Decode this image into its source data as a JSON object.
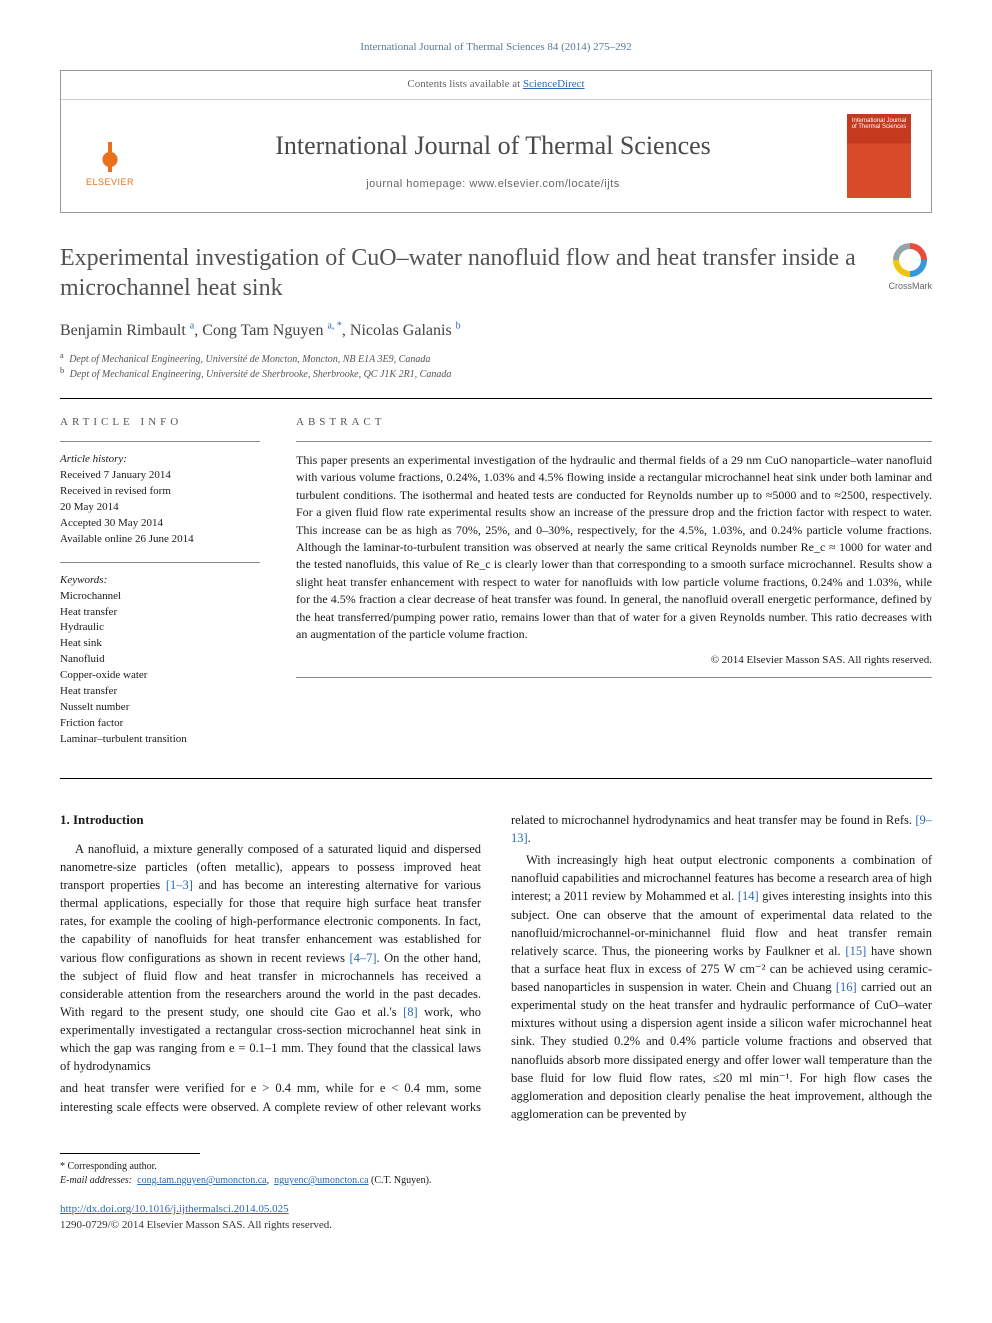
{
  "citation": "International Journal of Thermal Sciences 84 (2014) 275–292",
  "header": {
    "contents_prefix": "Contents lists available at ",
    "contents_link": "ScienceDirect",
    "journal_name": "International Journal of Thermal Sciences",
    "homepage_prefix": "journal homepage: ",
    "homepage_url": "www.elsevier.com/locate/ijts",
    "publisher": "ELSEVIER",
    "cover_text": "International Journal of Thermal Sciences"
  },
  "crossmark_label": "CrossMark",
  "title": "Experimental investigation of CuO–water nanofluid flow and heat transfer inside a microchannel heat sink",
  "authors_html": "Benjamin Rimbault <sup>a</sup>, Cong Tam Nguyen <sup>a, *</sup>, Nicolas Galanis <sup>b</sup>",
  "affiliations": [
    {
      "sup": "a",
      "text": "Dept of Mechanical Engineering, Université de Moncton, Moncton, NB E1A 3E9, Canada"
    },
    {
      "sup": "b",
      "text": "Dept of Mechanical Engineering, Université de Sherbrooke, Sherbrooke, QC J1K 2R1, Canada"
    }
  ],
  "article_info_head": "ARTICLE INFO",
  "abstract_head": "ABSTRACT",
  "history_label": "Article history:",
  "history": [
    "Received 7 January 2014",
    "Received in revised form",
    "20 May 2014",
    "Accepted 30 May 2014",
    "Available online 26 June 2014"
  ],
  "keywords_label": "Keywords:",
  "keywords": [
    "Microchannel",
    "Heat transfer",
    "Hydraulic",
    "Heat sink",
    "Nanofluid",
    "Copper-oxide water",
    "Heat transfer",
    "Nusselt number",
    "Friction factor",
    "Laminar–turbulent transition"
  ],
  "abstract": "This paper presents an experimental investigation of the hydraulic and thermal fields of a 29 nm CuO nanoparticle–water nanofluid with various volume fractions, 0.24%, 1.03% and 4.5% flowing inside a rectangular microchannel heat sink under both laminar and turbulent conditions. The isothermal and heated tests are conducted for Reynolds number up to ≈5000 and to ≈2500, respectively. For a given fluid flow rate experimental results show an increase of the pressure drop and the friction factor with respect to water. This increase can be as high as 70%, 25%, and 0–30%, respectively, for the 4.5%, 1.03%, and 0.24% particle volume fractions. Although the laminar-to-turbulent transition was observed at nearly the same critical Reynolds number Re_c ≈ 1000 for water and the tested nanofluids, this value of Re_c is clearly lower than that corresponding to a smooth surface microchannel. Results show a slight heat transfer enhancement with respect to water for nanofluids with low particle volume fractions, 0.24% and 1.03%, while for the 4.5% fraction a clear decrease of heat transfer was found. In general, the nanofluid overall energetic performance, defined by the heat transferred/pumping power ratio, remains lower than that of water for a given Reynolds number. This ratio decreases with an augmentation of the particle volume fraction.",
  "copyright": "© 2014 Elsevier Masson SAS. All rights reserved.",
  "intro_head": "1. Introduction",
  "intro_p1_a": "A nanofluid, a mixture generally composed of a saturated liquid and dispersed nanometre-size particles (often metallic), appears to possess improved heat transport properties ",
  "ref_1_3": "[1–3]",
  "intro_p1_b": " and has become an interesting alternative for various thermal applications, especially for those that require high surface heat transfer rates, for example the cooling of high-performance electronic components. In fact, the capability of nanofluids for heat transfer enhancement was established for various flow configurations as shown in recent reviews ",
  "ref_4_7": "[4–7]",
  "intro_p1_c": ". On the other hand, the subject of fluid flow and heat transfer in microchannels has received a considerable attention from the researchers around the world in the past decades. With regard to the present study, one should cite Gao et al.'s ",
  "ref_8": "[8]",
  "intro_p1_d": " work, who experimentally investigated a rectangular cross-section microchannel heat sink in which the gap was ranging from e = 0.1–1 mm. They found that the classical laws of hydrodynamics",
  "intro_p2_a": "and heat transfer were verified for e > 0.4 mm, while for e < 0.4 mm, some interesting scale effects were observed. A complete review of other relevant works related to microchannel hydrodynamics and heat transfer may be found in Refs. ",
  "ref_9_13": "[9–13]",
  "intro_p2_b": ".",
  "intro_p3_a": "With increasingly high heat output electronic components a combination of nanofluid capabilities and microchannel features has become a research area of high interest; a 2011 review by Mohammed et al. ",
  "ref_14": "[14]",
  "intro_p3_b": " gives interesting insights into this subject. One can observe that the amount of experimental data related to the nanofluid/microchannel-or-minichannel fluid flow and heat transfer remain relatively scarce. Thus, the pioneering works by Faulkner et al. ",
  "ref_15": "[15]",
  "intro_p3_c": " have shown that a surface heat flux in excess of 275 W cm⁻² can be achieved using ceramic-based nanoparticles in suspension in water. Chein and Chuang ",
  "ref_16": "[16]",
  "intro_p3_d": " carried out an experimental study on the heat transfer and hydraulic performance of CuO–water mixtures without using a dispersion agent inside a silicon wafer microchannel heat sink. They studied 0.2% and 0.4% particle volume fractions and observed that nanofluids absorb more dissipated energy and offer lower wall temperature than the base fluid for low fluid flow rates, ≤20 ml min⁻¹. For high flow cases the agglomeration and deposition clearly penalise the heat improvement, although the agglomeration can be prevented by",
  "footnote_star": "* Corresponding author.",
  "footnote_email_label": "E-mail addresses:",
  "footnote_email1": "cong.tam.nguyen@umoncton.ca",
  "footnote_email2": "nguyenc@umoncton.ca",
  "footnote_email_suffix": "(C.T. Nguyen).",
  "doi": "http://dx.doi.org/10.1016/j.ijthermalsci.2014.05.025",
  "issn_line": "1290-0729/© 2014 Elsevier Masson SAS. All rights reserved."
}
